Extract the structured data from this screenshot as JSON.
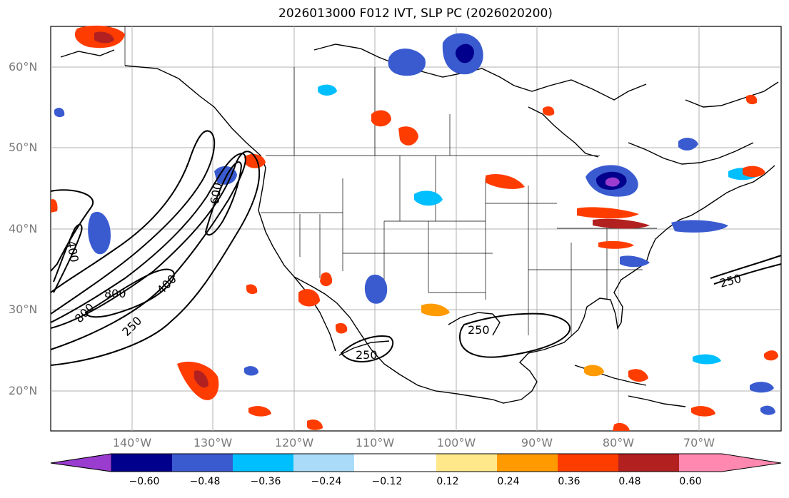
{
  "title": "2026013000 F012 IVT, SLP PC (2026020200)",
  "latitude_labels": [
    "60°N",
    "50°N",
    "40°N",
    "30°N",
    "20°N"
  ],
  "longitude_labels": [
    "140°W",
    "130°W",
    "120°W",
    "110°W",
    "100°W",
    "90°W",
    "80°W",
    "70°W"
  ],
  "contour_labels": [
    "600",
    "400",
    "800",
    "800",
    "400",
    "250",
    "250",
    "250",
    "250"
  ],
  "colorbar": {
    "tick_labels": [
      "−0.60",
      "−0.48",
      "−0.36",
      "−0.24",
      "−0.12",
      "0.12",
      "0.24",
      "0.36",
      "0.48",
      "0.60"
    ],
    "colors": [
      "#9a3ccf",
      "#00008c",
      "#3a5bd0",
      "#00bfff",
      "#aadcfa",
      "#ffffff",
      "#ffe88a",
      "#ff9a00",
      "#ff3c00",
      "#b22020",
      "#ff88b0"
    ]
  }
}
